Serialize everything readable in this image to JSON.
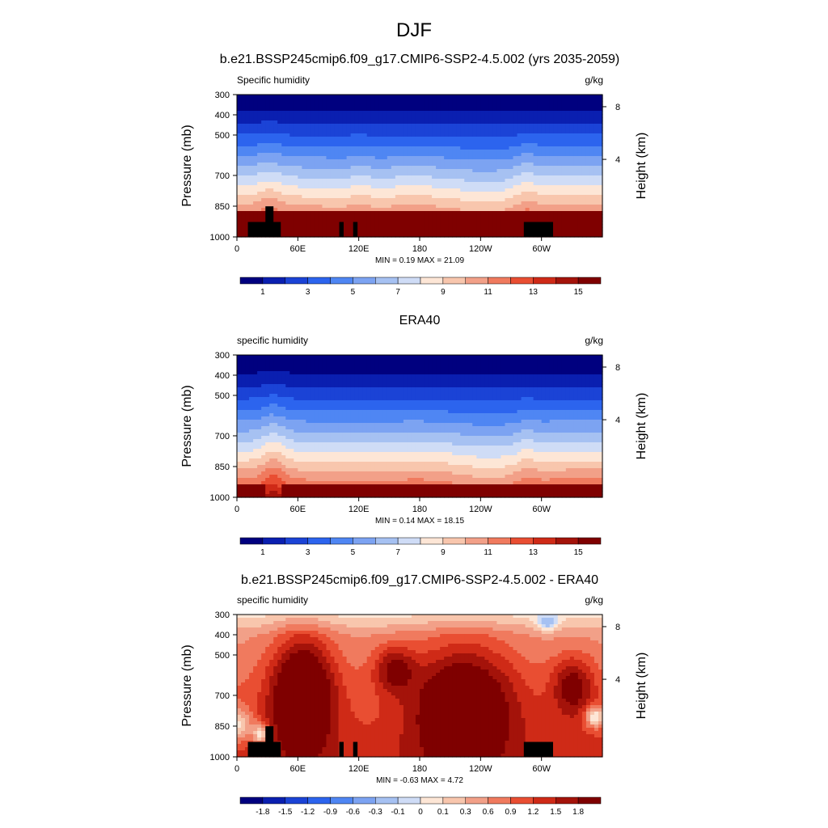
{
  "figure": {
    "title": "DJF"
  },
  "colors": {
    "abs_scale": [
      "#00007f",
      "#0a1fb0",
      "#1b43d6",
      "#2c64ee",
      "#4f86f3",
      "#7ca3f2",
      "#a6c1f2",
      "#cfdcf6",
      "#fde6d6",
      "#f8c6ad",
      "#f2a088",
      "#f07a5e",
      "#e94e32",
      "#cf2a17",
      "#a4130a",
      "#7f0000"
    ],
    "diff_scale": [
      "#00007f",
      "#0a1fb0",
      "#1b43d6",
      "#2c64ee",
      "#4f86f3",
      "#7ca3f2",
      "#a6c1f2",
      "#cfdcf6",
      "#fde6d6",
      "#f8c6ad",
      "#f2a088",
      "#f07a5e",
      "#e94e32",
      "#cf2a17",
      "#a4130a",
      "#7f0000"
    ],
    "land_mask": "#000000"
  },
  "chart_data": [
    {
      "type": "heatmap",
      "title": "b.e21.BSSP245cmip6.f09_g17.CMIP6-SSP2-4.5.002 (yrs 2035-2059)",
      "left_label": "Specific humidity",
      "right_label": "g/kg",
      "ylabel": "Pressure (mb)",
      "ylabel_right": "Height (km)",
      "yticks": [
        "300",
        "400",
        "500",
        "700",
        "850",
        "1000"
      ],
      "yticks_right": [
        "8",
        "4"
      ],
      "xticks": [
        "0",
        "60E",
        "120E",
        "180",
        "120W",
        "60W"
      ],
      "stats": "MIN =   0.19  MAX =  21.09",
      "colorbar_labels": [
        "1",
        "3",
        "5",
        "7",
        "9",
        "11",
        "13",
        "15"
      ],
      "ylim": [
        1000,
        300
      ],
      "xlim": [
        0,
        360
      ]
    },
    {
      "type": "heatmap",
      "title": "ERA40",
      "left_label": "specific humidity",
      "right_label": "g/kg",
      "ylabel": "Pressure (mb)",
      "ylabel_right": "Height (km)",
      "yticks": [
        "300",
        "400",
        "500",
        "700",
        "850",
        "1000"
      ],
      "yticks_right": [
        "8",
        "4"
      ],
      "xticks": [
        "0",
        "60E",
        "120E",
        "180",
        "120W",
        "60W"
      ],
      "stats": "MIN =   0.14  MAX =  18.15",
      "colorbar_labels": [
        "1",
        "3",
        "5",
        "7",
        "9",
        "11",
        "13",
        "15"
      ],
      "ylim": [
        1000,
        300
      ],
      "xlim": [
        0,
        360
      ]
    },
    {
      "type": "heatmap",
      "title": "b.e21.BSSP245cmip6.f09_g17.CMIP6-SSP2-4.5.002 - ERA40",
      "left_label": "specific humidity",
      "right_label": "g/kg",
      "ylabel": "Pressure (mb)",
      "ylabel_right": "Height (km)",
      "yticks": [
        "300",
        "400",
        "500",
        "700",
        "850",
        "1000"
      ],
      "yticks_right": [
        "8",
        "4"
      ],
      "xticks": [
        "0",
        "60E",
        "120E",
        "180",
        "120W",
        "60W"
      ],
      "stats": "MIN =  -0.63  MAX =   4.72",
      "colorbar_labels": [
        "-1.8",
        "-1.5",
        "-1.2",
        "-0.9",
        "-0.6",
        "-0.3",
        "-0.1",
        "0",
        "0.1",
        "0.3",
        "0.6",
        "0.9",
        "1.2",
        "1.5",
        "1.8"
      ],
      "ylim": [
        1000,
        300
      ],
      "xlim": [
        0,
        360
      ]
    }
  ]
}
